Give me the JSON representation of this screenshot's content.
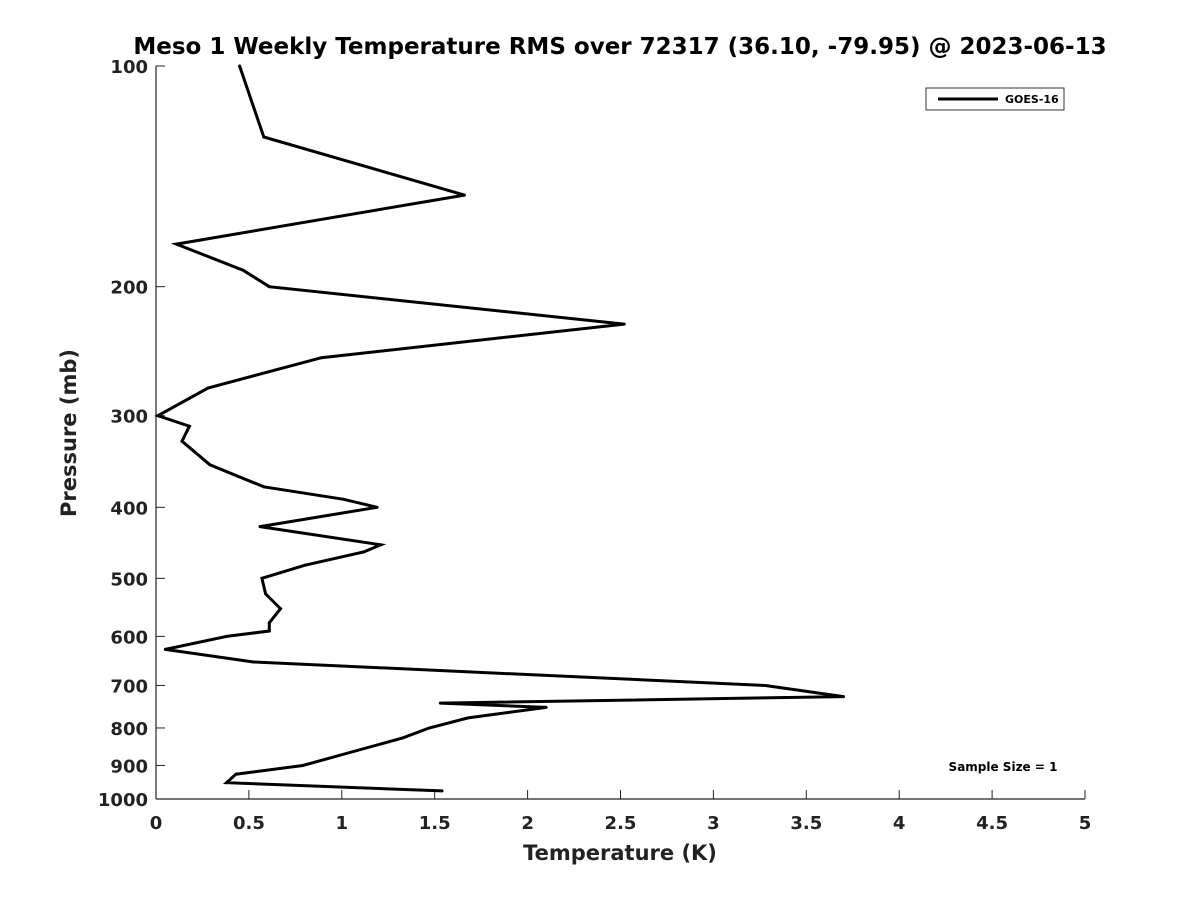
{
  "chart_data": {
    "type": "line",
    "title": "Meso 1 Weekly Temperature RMS over 72317 (36.10, -79.95) @ 2023-06-13",
    "xlabel": "Temperature (K)",
    "ylabel": "Pressure (mb)",
    "xlim": [
      0,
      5
    ],
    "ylim": [
      100,
      1000
    ],
    "y_scale": "log",
    "y_reversed": true,
    "grid": false,
    "x_ticks": [
      {
        "value": 0,
        "label": "0"
      },
      {
        "value": 0.5,
        "label": "0.5"
      },
      {
        "value": 1,
        "label": "1"
      },
      {
        "value": 1.5,
        "label": "1.5"
      },
      {
        "value": 2,
        "label": "2"
      },
      {
        "value": 2.5,
        "label": "2.5"
      },
      {
        "value": 3,
        "label": "3"
      },
      {
        "value": 3.5,
        "label": "3.5"
      },
      {
        "value": 4,
        "label": "4"
      },
      {
        "value": 4.5,
        "label": "4.5"
      },
      {
        "value": 5,
        "label": "5"
      }
    ],
    "y_ticks": [
      {
        "value": 100,
        "label": "100"
      },
      {
        "value": 200,
        "label": "200"
      },
      {
        "value": 300,
        "label": "300"
      },
      {
        "value": 400,
        "label": "400"
      },
      {
        "value": 500,
        "label": "500"
      },
      {
        "value": 600,
        "label": "600"
      },
      {
        "value": 700,
        "label": "700"
      },
      {
        "value": 800,
        "label": "800"
      },
      {
        "value": 900,
        "label": "900"
      },
      {
        "value": 1000,
        "label": "1000"
      }
    ],
    "legend_position": "top-right",
    "annotation": "Sample Size = 1",
    "series": [
      {
        "name": "GOES-16",
        "color": "#000000",
        "points": [
          {
            "x": 0.45,
            "y": 100
          },
          {
            "x": 0.58,
            "y": 125
          },
          {
            "x": 1.66,
            "y": 150
          },
          {
            "x": 0.11,
            "y": 175
          },
          {
            "x": 0.47,
            "y": 190
          },
          {
            "x": 0.61,
            "y": 200
          },
          {
            "x": 2.52,
            "y": 225
          },
          {
            "x": 0.89,
            "y": 250
          },
          {
            "x": 0.28,
            "y": 275
          },
          {
            "x": 0.01,
            "y": 300
          },
          {
            "x": 0.18,
            "y": 310
          },
          {
            "x": 0.14,
            "y": 325
          },
          {
            "x": 0.29,
            "y": 350
          },
          {
            "x": 0.58,
            "y": 375
          },
          {
            "x": 1.01,
            "y": 390
          },
          {
            "x": 1.19,
            "y": 400
          },
          {
            "x": 0.56,
            "y": 425
          },
          {
            "x": 1.21,
            "y": 450
          },
          {
            "x": 1.12,
            "y": 460
          },
          {
            "x": 0.8,
            "y": 480
          },
          {
            "x": 0.57,
            "y": 500
          },
          {
            "x": 0.59,
            "y": 525
          },
          {
            "x": 0.67,
            "y": 550
          },
          {
            "x": 0.61,
            "y": 575
          },
          {
            "x": 0.61,
            "y": 590
          },
          {
            "x": 0.38,
            "y": 600
          },
          {
            "x": 0.05,
            "y": 625
          },
          {
            "x": 0.52,
            "y": 650
          },
          {
            "x": 3.28,
            "y": 700
          },
          {
            "x": 3.7,
            "y": 725
          },
          {
            "x": 1.53,
            "y": 740
          },
          {
            "x": 2.1,
            "y": 750
          },
          {
            "x": 1.68,
            "y": 775
          },
          {
            "x": 1.47,
            "y": 800
          },
          {
            "x": 1.33,
            "y": 825
          },
          {
            "x": 0.79,
            "y": 900
          },
          {
            "x": 0.43,
            "y": 925
          },
          {
            "x": 0.38,
            "y": 950
          },
          {
            "x": 1.54,
            "y": 975
          }
        ]
      }
    ]
  }
}
